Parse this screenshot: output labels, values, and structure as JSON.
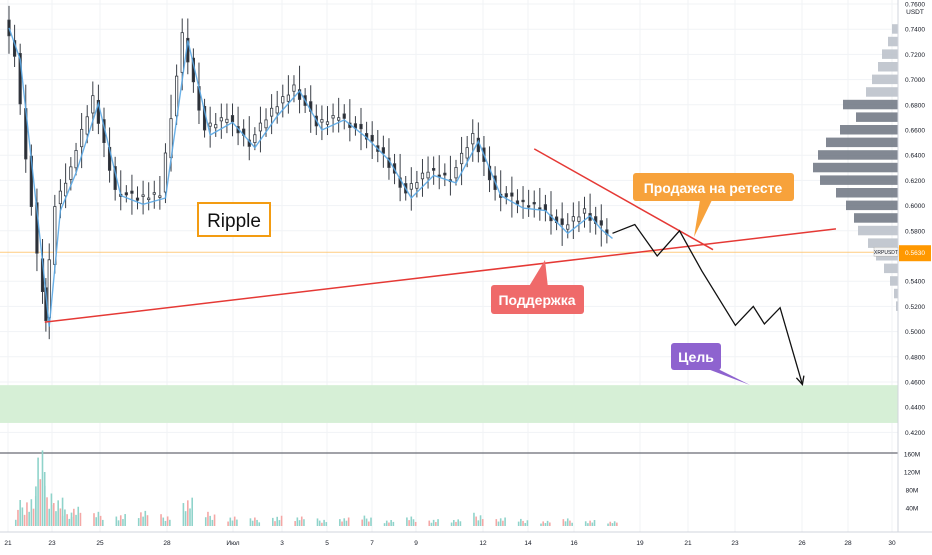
{
  "chart_data": {
    "type": "candlestick",
    "instrument_label": "XRPUSDT",
    "price_axis": {
      "unit": "USDT",
      "ticks": [
        "0.7600",
        "0.7400",
        "0.7200",
        "0.7000",
        "0.6800",
        "0.6600",
        "0.6400",
        "0.6200",
        "0.6000",
        "0.5800",
        "0.5600",
        "0.5400",
        "0.5200",
        "0.5000",
        "0.4800",
        "0.4600",
        "0.4400",
        "0.4200"
      ],
      "ylim": [
        0.41,
        0.76
      ],
      "current_price": "0.5630",
      "current_price_label": "0.5630"
    },
    "volume_axis": {
      "ticks": [
        "160M",
        "120M",
        "80M",
        "40M"
      ],
      "ylim": [
        0,
        180
      ]
    },
    "time_axis": {
      "ticks": [
        "21",
        "23",
        "25",
        "28",
        "Июл",
        "3",
        "5",
        "7",
        "9",
        "12",
        "14",
        "16",
        "19",
        "21",
        "23",
        "26",
        "28",
        "30"
      ]
    },
    "price_series": [
      {
        "d": 0,
        "p": 0.745
      },
      {
        "d": 0.5,
        "p": 0.72
      },
      {
        "d": 1,
        "p": 0.64
      },
      {
        "d": 1.5,
        "p": 0.56
      },
      {
        "d": 1.8,
        "p": 0.508
      },
      {
        "d": 2.3,
        "p": 0.6
      },
      {
        "d": 3,
        "p": 0.63
      },
      {
        "d": 4,
        "p": 0.685
      },
      {
        "d": 5,
        "p": 0.612
      },
      {
        "d": 6,
        "p": 0.605
      },
      {
        "d": 7,
        "p": 0.61
      },
      {
        "d": 7.5,
        "p": 0.672
      },
      {
        "d": 8,
        "p": 0.735
      },
      {
        "d": 9,
        "p": 0.66
      },
      {
        "d": 10,
        "p": 0.67
      },
      {
        "d": 11,
        "p": 0.65
      },
      {
        "d": 12,
        "p": 0.675
      },
      {
        "d": 13,
        "p": 0.695
      },
      {
        "d": 14,
        "p": 0.664
      },
      {
        "d": 15,
        "p": 0.672
      },
      {
        "d": 16,
        "p": 0.658
      },
      {
        "d": 17,
        "p": 0.64
      },
      {
        "d": 18,
        "p": 0.61
      },
      {
        "d": 19,
        "p": 0.628
      },
      {
        "d": 20,
        "p": 0.622
      },
      {
        "d": 21,
        "p": 0.655
      },
      {
        "d": 22,
        "p": 0.612
      },
      {
        "d": 23,
        "p": 0.602
      },
      {
        "d": 24,
        "p": 0.6
      },
      {
        "d": 25,
        "p": 0.582
      },
      {
        "d": 26,
        "p": 0.596
      },
      {
        "d": 26.5,
        "p": 0.585
      },
      {
        "d": 27,
        "p": 0.578
      }
    ],
    "volume_bars": [
      {
        "d": 0.5,
        "v": 55
      },
      {
        "d": 1,
        "v": 70
      },
      {
        "d": 1.4,
        "v": 160
      },
      {
        "d": 1.8,
        "v": 85
      },
      {
        "d": 2.2,
        "v": 60
      },
      {
        "d": 2.6,
        "v": 35
      },
      {
        "d": 3,
        "v": 45
      },
      {
        "d": 4,
        "v": 30
      },
      {
        "d": 5,
        "v": 28
      },
      {
        "d": 6,
        "v": 32
      },
      {
        "d": 7,
        "v": 25
      },
      {
        "d": 8,
        "v": 60
      },
      {
        "d": 9,
        "v": 30
      },
      {
        "d": 10,
        "v": 22
      },
      {
        "d": 11,
        "v": 18
      },
      {
        "d": 12,
        "v": 24
      },
      {
        "d": 13,
        "v": 20
      },
      {
        "d": 14,
        "v": 16
      },
      {
        "d": 15,
        "v": 18
      },
      {
        "d": 16,
        "v": 22
      },
      {
        "d": 17,
        "v": 14
      },
      {
        "d": 18,
        "v": 20
      },
      {
        "d": 19,
        "v": 16
      },
      {
        "d": 20,
        "v": 14
      },
      {
        "d": 21,
        "v": 28
      },
      {
        "d": 22,
        "v": 18
      },
      {
        "d": 23,
        "v": 15
      },
      {
        "d": 24,
        "v": 12
      },
      {
        "d": 25,
        "v": 16
      },
      {
        "d": 26,
        "v": 14
      },
      {
        "d": 27,
        "v": 10
      }
    ],
    "volume_profile": [
      {
        "p": 0.74,
        "w": 6
      },
      {
        "p": 0.73,
        "w": 10
      },
      {
        "p": 0.72,
        "w": 16
      },
      {
        "p": 0.71,
        "w": 20
      },
      {
        "p": 0.7,
        "w": 26
      },
      {
        "p": 0.69,
        "w": 32
      },
      {
        "p": 0.68,
        "w": 55
      },
      {
        "p": 0.67,
        "w": 42
      },
      {
        "p": 0.66,
        "w": 58
      },
      {
        "p": 0.65,
        "w": 72
      },
      {
        "p": 0.64,
        "w": 80
      },
      {
        "p": 0.63,
        "w": 85
      },
      {
        "p": 0.62,
        "w": 78
      },
      {
        "p": 0.61,
        "w": 62
      },
      {
        "p": 0.6,
        "w": 52
      },
      {
        "p": 0.59,
        "w": 44
      },
      {
        "p": 0.58,
        "w": 40
      },
      {
        "p": 0.57,
        "w": 30
      },
      {
        "p": 0.56,
        "w": 22
      },
      {
        "p": 0.55,
        "w": 14
      },
      {
        "p": 0.54,
        "w": 8
      },
      {
        "p": 0.53,
        "w": 4
      },
      {
        "p": 0.52,
        "w": 2
      }
    ],
    "support_line": {
      "start": {
        "d": 1.6,
        "p": 0.5075
      },
      "end": {
        "d": 37,
        "p": 0.5815
      }
    },
    "resistance_line": {
      "start": {
        "d": 23.5,
        "p": 0.645
      },
      "end": {
        "d": 31.5,
        "p": 0.565
      }
    },
    "forecast_path": [
      {
        "d": 27,
        "p": 0.578
      },
      {
        "d": 28,
        "p": 0.585
      },
      {
        "d": 29,
        "p": 0.56
      },
      {
        "d": 30,
        "p": 0.58
      },
      {
        "d": 31,
        "p": 0.548
      },
      {
        "d": 32.5,
        "p": 0.505
      },
      {
        "d": 33.3,
        "p": 0.52
      },
      {
        "d": 33.8,
        "p": 0.506
      },
      {
        "d": 34.5,
        "p": 0.519
      },
      {
        "d": 35.5,
        "p": 0.458
      }
    ],
    "target_zone": {
      "from": 0.4275,
      "to": 0.4575
    },
    "annotations": {
      "title": "Ripple",
      "sell_label": "Продажа на ретесте",
      "support_label": "Поддержка",
      "target_label": "Цель"
    },
    "colors": {
      "up": "#26a69a",
      "down": "#ef5350",
      "price_line": "#4a4a4a",
      "ma": "#5aa9e6",
      "trendline": "#e53935",
      "target_zone": "#d6efd6",
      "sell_box": "#f7a23b",
      "support_box": "#ef6a6a",
      "target_box": "#8e63cf",
      "title_border": "#f39c12",
      "price_tag": "#ff9800"
    }
  }
}
